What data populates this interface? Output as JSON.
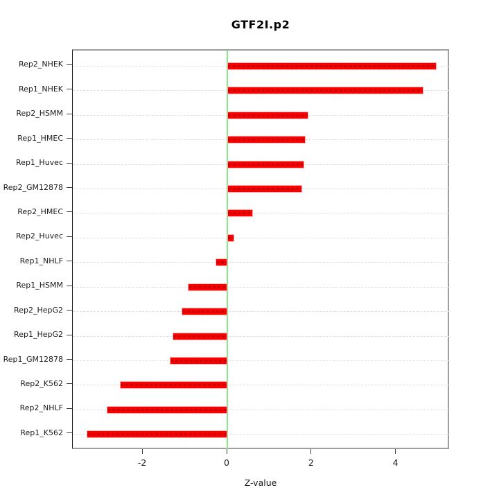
{
  "chart_data": {
    "type": "bar",
    "orientation": "horizontal",
    "title": "GTF2I.p2",
    "xlabel": "Z-value",
    "categories": [
      "Rep2_NHEK",
      "Rep1_NHEK",
      "Rep2_HSMM",
      "Rep1_HMEC",
      "Rep1_Huvec",
      "Rep2_GM12878",
      "Rep2_HMEC",
      "Rep2_Huvec",
      "Rep1_NHLF",
      "Rep1_HSMM",
      "Rep2_HepG2",
      "Rep1_HepG2",
      "Rep1_GM12878",
      "Rep2_K562",
      "Rep2_NHLF",
      "Rep1_K562"
    ],
    "values": [
      4.95,
      4.64,
      1.92,
      1.85,
      1.82,
      1.77,
      0.61,
      0.16,
      -0.28,
      -0.93,
      -1.09,
      -1.29,
      -1.37,
      -2.54,
      -2.85,
      -3.33
    ],
    "xticks": [
      -2,
      0,
      2,
      4
    ],
    "xlim": [
      -3.66,
      5.27
    ],
    "grid": "dashed horizontal line per category",
    "legend": "none",
    "colors": {
      "bar_fill": "#fa0000",
      "bar_edge": "#ffadad",
      "bar_dash": "#c40000",
      "zero_line": "#86e886",
      "grid_line": "#dedede",
      "box": "#9e9e9e",
      "axis": "#1a1a1a"
    }
  }
}
